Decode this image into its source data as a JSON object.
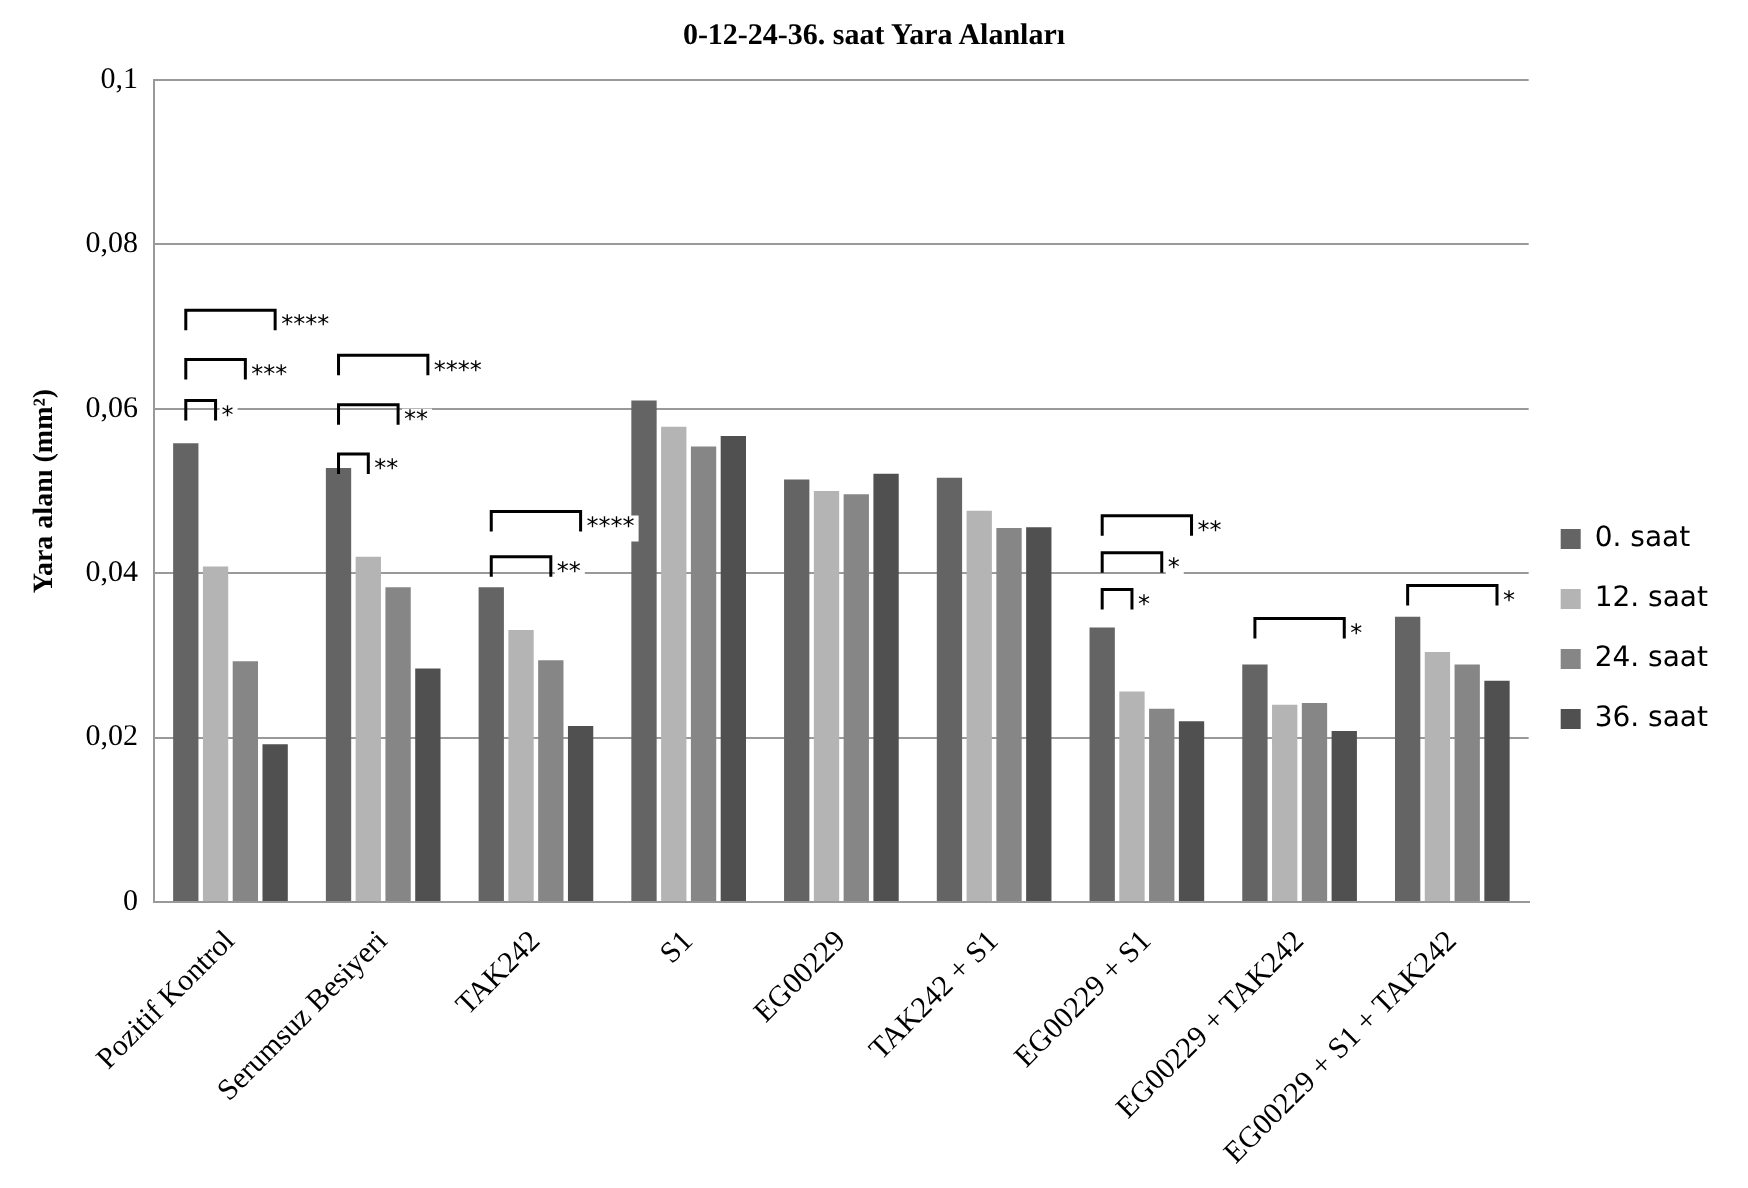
{
  "chart_data": {
    "type": "bar",
    "title": "0-12-24-36. saat Yara Alanları",
    "ylabel": "Yara alanı (mm²)",
    "categories": [
      "Pozitif Kontrol",
      "Serumsuz Besiyeri",
      "TAK242",
      "S1",
      "EG00229",
      "TAK242 + S1",
      "EG00229 + S1",
      "EG00229 + TAK242",
      "EG00229 + S1 + TAK242"
    ],
    "series": [
      {
        "name": "0. saat",
        "color": "#646464",
        "values": [
          0.0558,
          0.0528,
          0.0383,
          0.061,
          0.0514,
          0.0516,
          0.0334,
          0.0289,
          0.0347
        ]
      },
      {
        "name": "12. saat",
        "color": "#b4b4b4",
        "values": [
          0.0408,
          0.042,
          0.0331,
          0.0578,
          0.05,
          0.0476,
          0.0256,
          0.024,
          0.0304
        ]
      },
      {
        "name": "24. saat",
        "color": "#868686",
        "values": [
          0.0293,
          0.0383,
          0.0294,
          0.0554,
          0.0496,
          0.0455,
          0.0235,
          0.0242,
          0.0289
        ]
      },
      {
        "name": "36. saat",
        "color": "#505050",
        "values": [
          0.0192,
          0.0284,
          0.0214,
          0.0567,
          0.0521,
          0.0456,
          0.022,
          0.0208,
          0.0269
        ]
      }
    ],
    "ylim": [
      0,
      0.1
    ],
    "yticks": [
      0,
      {
        "value": 0.02,
        "label": "0,02"
      },
      {
        "value": 0.04,
        "label": "0,04"
      },
      {
        "value": 0.06,
        "label": "0,06"
      },
      {
        "value": 0.08,
        "label": "0,08"
      },
      {
        "value": 0.1,
        "label": "0,1"
      }
    ],
    "grid": "y",
    "legend": "right",
    "annotations": [
      "*",
      "***",
      "****",
      "**",
      "**",
      "****",
      "**",
      "****",
      "*",
      "*",
      "**",
      "*",
      "*"
    ]
  }
}
